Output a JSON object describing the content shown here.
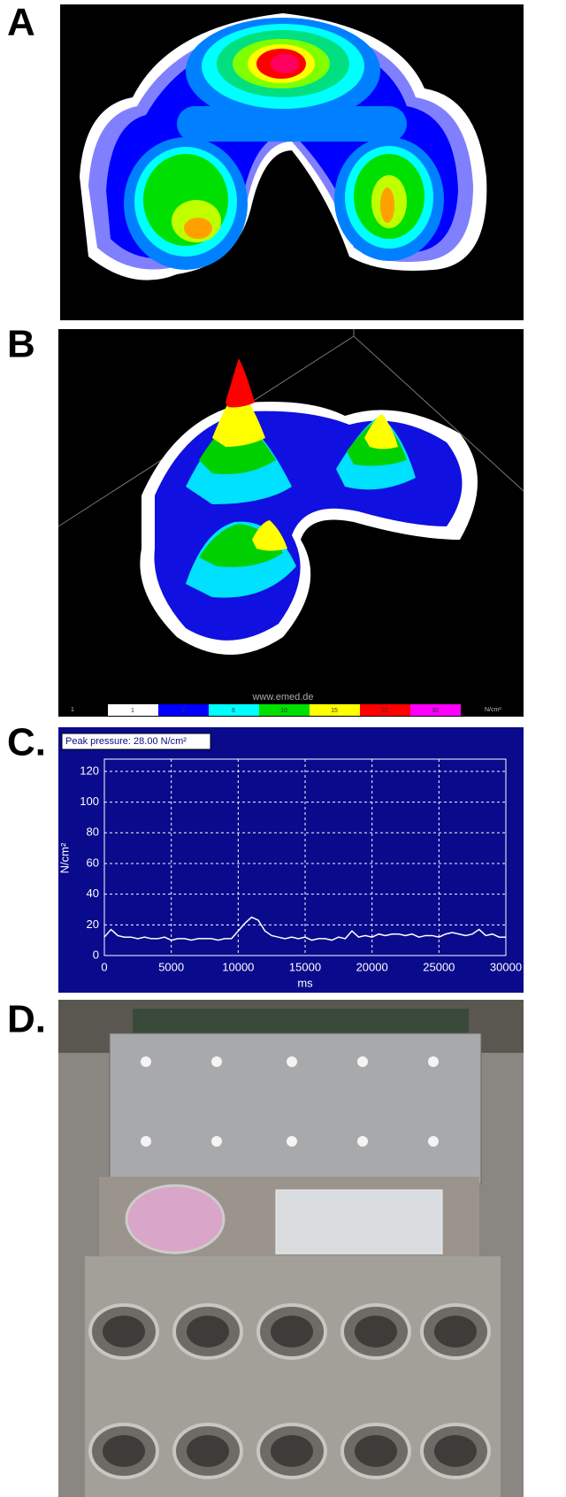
{
  "panels": [
    {
      "label": "A"
    },
    {
      "label": "B"
    },
    {
      "label": "C."
    },
    {
      "label": "D."
    }
  ],
  "colorbar": {
    "left": "1",
    "labels": [
      "1",
      "3",
      "6",
      "10",
      "15",
      "22",
      "30"
    ],
    "colors": [
      "#ffffff",
      "#0000ff",
      "#00ffff",
      "#00e000",
      "#ffff00",
      "#ff0000",
      "#ff00ff"
    ],
    "unit": "N/cm²",
    "site": "www.emed.de"
  },
  "chart_data": {
    "type": "line",
    "title": "Peak pressure: 28.00 N/cm²",
    "x_label": "ms",
    "y_label": "N/cm²",
    "x": [
      0,
      500,
      1000,
      1500,
      2000,
      2500,
      3000,
      3500,
      4000,
      4500,
      5000,
      5500,
      6000,
      6500,
      7000,
      7500,
      8000,
      8500,
      9000,
      9500,
      10000,
      10500,
      11000,
      11500,
      12000,
      12500,
      13000,
      13500,
      14000,
      14500,
      15000,
      15500,
      16000,
      16500,
      17000,
      17500,
      18000,
      18500,
      19000,
      19500,
      20000,
      20500,
      21000,
      21500,
      22000,
      22500,
      23000,
      23500,
      24000,
      24500,
      25000,
      25500,
      26000,
      26500,
      27000,
      27500,
      28000,
      28500,
      29000,
      29500,
      30000
    ],
    "series": [
      {
        "color": "#ffffff",
        "values": [
          12,
          17,
          13,
          12,
          12,
          11,
          12,
          11,
          11,
          12,
          10,
          11,
          11,
          10,
          11,
          11,
          11,
          10,
          11,
          11,
          16,
          21,
          25,
          23,
          16,
          13,
          12,
          11,
          12,
          11,
          12,
          10,
          11,
          11,
          10,
          12,
          11,
          16,
          12,
          13,
          12,
          14,
          13,
          14,
          14,
          13,
          14,
          12,
          13,
          13,
          12,
          14,
          15,
          14,
          13,
          14,
          17,
          13,
          14,
          12,
          12
        ]
      }
    ],
    "xlim": [
      0,
      30000
    ],
    "xticks": [
      0,
      5000,
      10000,
      15000,
      20000,
      25000,
      30000
    ],
    "ylim": [
      0,
      128
    ],
    "yticks": [
      0,
      20,
      40,
      60,
      80,
      100,
      120
    ],
    "grid": true
  }
}
